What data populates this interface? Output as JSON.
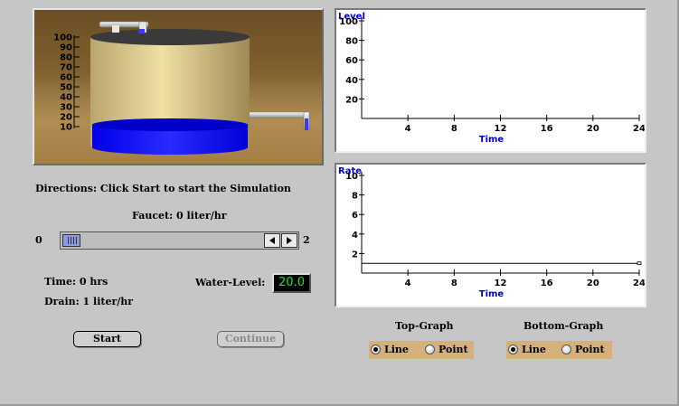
{
  "directions": "Directions: Click Start to start the Simulation",
  "faucet": {
    "label": "Faucet: 0 liter/hr",
    "min_label": "0",
    "max_label": "2",
    "value": 0
  },
  "time_label": "Time: 0 hrs",
  "drain_label": "Drain: 1 liter/hr",
  "water_level_label": "Water-Level:",
  "water_level_value": "20.0",
  "buttons": {
    "start": "Start",
    "continue": "Continue"
  },
  "tank": {
    "scale": [
      "100",
      "90",
      "80",
      "70",
      "60",
      "50",
      "40",
      "30",
      "20",
      "10"
    ],
    "water_level_percent": 20,
    "water_color": "#0000ff"
  },
  "top_graph_options": {
    "title": "Top-Graph",
    "line": "Line",
    "point": "Point",
    "selected": "line"
  },
  "bottom_graph_options": {
    "title": "Bottom-Graph",
    "line": "Line",
    "point": "Point",
    "selected": "line"
  },
  "chart_data": [
    {
      "type": "line",
      "title": "",
      "ylabel": "Level",
      "xlabel": "Time",
      "xlim": [
        0,
        24
      ],
      "ylim": [
        0,
        100
      ],
      "x_ticks": [
        "4",
        "8",
        "12",
        "16",
        "20",
        "24"
      ],
      "y_ticks": [
        "20",
        "40",
        "60",
        "80",
        "100"
      ],
      "series": []
    },
    {
      "type": "line",
      "title": "",
      "ylabel": "Rate",
      "xlabel": "Time",
      "xlim": [
        0,
        24
      ],
      "ylim": [
        0,
        10
      ],
      "x_ticks": [
        "4",
        "8",
        "12",
        "16",
        "20",
        "24"
      ],
      "y_ticks": [
        "2",
        "4",
        "6",
        "8",
        "10"
      ],
      "series": [
        {
          "x": [
            0,
            24
          ],
          "y": [
            1,
            1
          ]
        }
      ]
    }
  ]
}
